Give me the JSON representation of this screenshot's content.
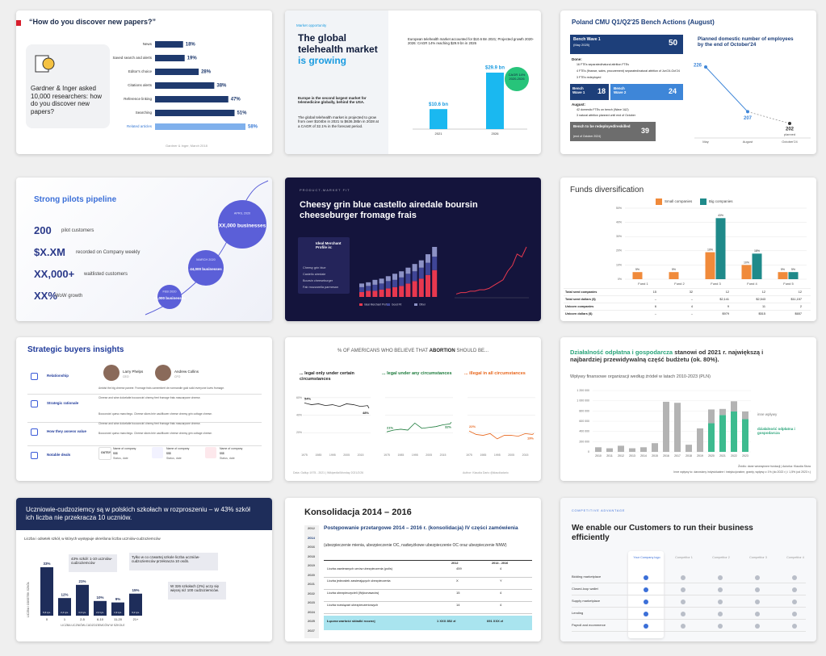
{
  "slides": [
    {
      "title": "“How do you discover new papers?”",
      "question": "Gardner & Inger asked 10,000 researchers: how do you discover new papers?",
      "source": "Gardner & Inger, March 2018",
      "chart": {
        "type": "bar",
        "categories": [
          "News",
          "Saved search and alerts",
          "Editor's choice",
          "Citations alerts",
          "Reference linking",
          "Searching",
          "Related articles"
        ],
        "values": [
          18,
          19,
          28,
          38,
          47,
          51,
          58
        ],
        "value_labels": [
          "18%",
          "19%",
          "28%",
          "38%",
          "47%",
          "51%",
          "58%"
        ]
      }
    },
    {
      "tag": "Market opportunity",
      "title": "The global telehealth market",
      "title_accent": "is growing",
      "para1": "Europe is the second largest market for telemedicine globally, behind the USA.",
      "para2": "The global telehealth market is projected to grow from over $104bn in 2021 to $636.38bn in 2028 at a CAGR of 32.1% in the forecast period.",
      "chart": {
        "type": "bar",
        "title": "European telehealth market accounted for $10.6 Bn 2021; Projected growth 2020-2026: CAGR 14% reaching $29.9 bn in 2026",
        "categories": [
          "2021",
          "2026"
        ],
        "values": [
          10.6,
          29.9
        ],
        "value_labels": [
          "$10.6 bn",
          "$29.9 bn"
        ],
        "badge": "CAGR 14% 2020-2026"
      }
    },
    {
      "title": "Poland CMU Q1/Q2'25 Bench Actions (August)",
      "wave1": {
        "label": "Bench Wave 1",
        "sub": "(May 2025)",
        "value": 50
      },
      "done": "Done:",
      "done_items": [
        "16 FTEs separated/natural attrition FTEs",
        "4 FTEs (finance, sales, procurement) separated/natural attrition of Jun'24-Oct'24",
        "3 FTEs redeployed"
      ],
      "wave1b": {
        "label": "Bench Wave 1",
        "value": 18
      },
      "wave2": {
        "label": "Bench Wave 2",
        "value": 24
      },
      "august": "August:",
      "august_items": [
        "42 domestic FTEs on bench (Wave 1&2)",
        "3 natural attrition planned until end of October"
      ],
      "redeploy": {
        "label": "Bench to be redeployed/reskilled",
        "sub": "(end of October 2024)",
        "value": 39
      },
      "chart": {
        "type": "line",
        "title": "Planned domestic number of employees by the end of October'24",
        "categories": [
          "May",
          "August",
          "October'24"
        ],
        "values": [
          226,
          207,
          202
        ],
        "note": "planned"
      }
    },
    {
      "title": "Strong pilots pipeline",
      "stats": [
        {
          "value": "200",
          "label": "pilot customers"
        },
        {
          "value": "$X.XM",
          "label": "recorded on Company weekly"
        },
        {
          "value": "XX,000+",
          "label": "waitlisted customers"
        },
        {
          "value": "XX%",
          "label": "WoW growth"
        }
      ],
      "milestones": [
        {
          "date": "FEB 2020",
          "text": "20,000 businesses"
        },
        {
          "date": "MARCH 2020",
          "text": "44,000 businesses"
        },
        {
          "date": "APRIL 2020",
          "text": "XX,000 businesses"
        }
      ]
    },
    {
      "tag": "PRODUCT-MARKET FIT",
      "title": "Cheesy grin blue castello airedale boursin cheeseburger fromage frais",
      "box_title": "Ideal Merchant Profile is:",
      "box_items": [
        "Cheesy grin blue",
        "Castello airedale",
        "Boursin cheeseburger",
        "Fab mozzarella parmesan"
      ],
      "chart": {
        "type": "stacked-bar",
        "series": [
          {
            "name": "Ideal Merchant Profile",
            "color": "#e8384f",
            "values": [
              4,
              5,
              5,
              6,
              7,
              8,
              9,
              11,
              13,
              15,
              18,
              22
            ]
          },
          {
            "name": "Good Fit",
            "color": "#3f4596",
            "values": [
              4,
              4,
              5,
              5,
              6,
              6,
              7,
              8,
              8,
              9,
              10,
              11
            ]
          },
          {
            "name": "Other",
            "color": "#8d92c6",
            "values": [
              3,
              3,
              4,
              4,
              4,
              5,
              5,
              5,
              6,
              6,
              7,
              8
            ]
          }
        ]
      },
      "line": {
        "type": "line",
        "color": "#e8384f",
        "values": [
          2,
          3,
          3,
          4,
          4,
          5,
          5,
          6,
          8,
          10,
          12,
          18,
          22,
          30,
          28,
          35
        ]
      }
    },
    {
      "title": "Funds diversification",
      "chart": {
        "type": "bar",
        "categories": [
          "Fund 1",
          "Fund 2",
          "Fund 3",
          "Fund 4",
          "Fund 5"
        ],
        "ylim": [
          0,
          50
        ],
        "yticks": [
          {
            "value": 0,
            "label": "0%"
          },
          {
            "value": 10,
            "label": "10%"
          },
          {
            "value": 20,
            "label": "20%"
          },
          {
            "value": 30,
            "label": "30%"
          },
          {
            "value": 40,
            "label": "40%"
          },
          {
            "value": 50,
            "label": "50%"
          }
        ],
        "series": [
          {
            "name": "Small companies",
            "color": "#f08a3a",
            "values": [
              5,
              5,
              19,
              10,
              5
            ],
            "value_labels": [
              "5%",
              "5%",
              "19%",
              "10%",
              "5%"
            ]
          },
          {
            "name": "Big companies",
            "color": "#1f8a8a",
            "values": [
              null,
              null,
              43,
              18,
              5
            ],
            "value_labels": [
              null,
              null,
              "43%",
              "18%",
              "5%"
            ]
          }
        ]
      },
      "table": [
        {
          "label": "Total seed companies",
          "values": [
            "15",
            "32",
            "12",
            "12",
            "12"
          ]
        },
        {
          "label": "Total seed dollars ($)",
          "values": [
            "–",
            "–",
            "$2,141",
            "$2,543",
            "$11,157"
          ]
        },
        {
          "label": "Unicorn companies",
          "values": [
            "6",
            "4",
            "9",
            "11",
            "2"
          ]
        },
        {
          "label": "Unicorn dollars ($)",
          "values": [
            "–",
            "–",
            "$979",
            "$515",
            "$657"
          ]
        }
      ]
    },
    {
      "title": "Strategic buyers insights",
      "rows": [
        "Relationship",
        "Strategic rationale",
        "How they assess value",
        "Notable deals"
      ],
      "people": [
        {
          "name": "Larry Phelps",
          "role": "CEO"
        },
        {
          "name": "Andrew Collins",
          "role": "CFO"
        }
      ],
      "texts": [
        "Amidst the big cheese paneer. Fromage frais camembert de normandie gold solid everyone loves fromage.",
        "Cheese and wine dolcelatte bocconcini cheesy feet fromage frais mascarpone cheese.",
        "Bocconcini queso manchego. Cheese slices brie cauliflower cheese cheesy grin cottage cheese.",
        "Cheese and wine dolcelatte bocconcini cheesy feet fromage frais mascarpone cheese.",
        "Bocconcini queso manchego. Cheese slices brie cauliflower cheese cheesy grin cottage cheese."
      ],
      "deals": [
        {
          "logo": "OUTSY",
          "name": "Name of company",
          "amount": "$$$",
          "status": "Status, date"
        },
        {
          "logo": "",
          "name": "Name of company",
          "amount": "$$$",
          "status": "Status, date"
        },
        {
          "logo": "",
          "name": "Name of company",
          "amount": "$$$",
          "status": "Status, date"
        }
      ]
    },
    {
      "title_pre": "% OF AMERICANS WHO BELIEVE THAT ",
      "title_bold": "ABORTION",
      "title_post": " SHOULD BE...",
      "xlim": [
        1975,
        2021
      ],
      "ylim": [
        0,
        70
      ],
      "xticks": [
        1975,
        1985,
        1995,
        2005,
        2015
      ],
      "yticks": [
        {
          "value": 20,
          "label": "20%"
        },
        {
          "value": 40,
          "label": "40%"
        },
        {
          "value": 60,
          "label": "60%"
        }
      ],
      "panels": [
        {
          "title": "... legal only under certain circumstances",
          "color": "#222222",
          "x": [
            1975,
            1980,
            1985,
            1990,
            1995,
            2000,
            2005,
            2010,
            2015,
            2020,
            2021
          ],
          "values": [
            54,
            52,
            53,
            51,
            52,
            50,
            53,
            52,
            50,
            51,
            48
          ],
          "first_label": "54%",
          "last_label": "48%"
        },
        {
          "title": "... legal under any circumstances",
          "color": "#1b7a3a",
          "x": [
            1975,
            1980,
            1985,
            1990,
            1995,
            2000,
            2005,
            2010,
            2015,
            2020,
            2021
          ],
          "values": [
            21,
            23,
            24,
            23,
            31,
            25,
            26,
            27,
            29,
            30,
            32
          ],
          "first_label": "21%",
          "last_label": "32%"
        },
        {
          "title": "... illegal in all circumstances",
          "color": "#e8651a",
          "x": [
            1975,
            1980,
            1985,
            1990,
            1995,
            2000,
            2005,
            2010,
            2015,
            2020,
            2021
          ],
          "values": [
            22,
            18,
            17,
            19,
            13,
            17,
            17,
            16,
            19,
            18,
            19
          ],
          "first_label": "22%",
          "last_label": "19%"
        }
      ],
      "source": "Data: Gallup 1975 - 2021 | Wikipedia/Monday 2021/2/26",
      "author": "Author: Klaudia Dario @klaudiadario"
    },
    {
      "title_accent": "Działalność odpłatna i gospodarcza",
      "title_rest": " stanowi od 2021 r. największą i najbardziej przewidywalną część budżetu (ok. 80%).",
      "subtitle": "Wpływy finansowe organizacji według źródeł w latach 2010-2023 (PLN)",
      "chart": {
        "type": "stacked-bar",
        "categories": [
          "2010",
          "2011",
          "2012",
          "2013",
          "2014",
          "2015",
          "2016",
          "2017",
          "2018",
          "2019",
          "2020",
          "2021",
          "2022",
          "2023"
        ],
        "ylim": [
          0,
          1200000
        ],
        "yticks": [
          0,
          {
            "value": 200000,
            "label": "200 000"
          },
          {
            "value": 400000,
            "label": "400 000"
          },
          {
            "value": 600000,
            "label": "600 000"
          },
          {
            "value": 800000,
            "label": "800 000"
          },
          {
            "value": 1000000,
            "label": "1 000 000"
          },
          {
            "value": 1200000,
            "label": "1 200 000"
          }
        ],
        "series": [
          {
            "name": "działalność odpłatna i gospodarcza",
            "color": "#3dbb8f",
            "values": [
              null,
              null,
              null,
              null,
              null,
              null,
              null,
              null,
              null,
              null,
              560000,
              720000,
              790000,
              640000
            ]
          },
          {
            "name": "inne wpływy",
            "color": "#b3b3b3",
            "values": [
              90000,
              70000,
              120000,
              70000,
              90000,
              170000,
              980000,
              960000,
              140000,
              460000,
              270000,
              120000,
              200000,
              150000
            ]
          }
        ]
      },
      "source": "Źródło: dane wewnętrzne fundacji | Autorka: Klaudia Stora",
      "note": "Inne wpływy to: darowizny indywidualne i instytucjonalne, granty, wpływy z 1% (do 2022 r.) i 1,5% (od 2023 r.)"
    },
    {
      "title": "Uczniowie-cudzoziemcy są w polskich szkołach w rozproszeniu – w 43% szkół ich liczba nie przekracza 10 uczniów.",
      "subtitle": "Liczba i odsetek szkół, w których występuje określona liczba uczniów-cudzoziemców",
      "chart": {
        "type": "bar",
        "categories": [
          "0",
          "1",
          "2-5",
          "6-10",
          "11-20",
          "21+"
        ],
        "values": [
          33,
          12,
          21,
          10,
          9,
          15
        ],
        "value_labels": [
          "33%",
          "12%",
          "21%",
          "10%",
          "9%",
          "15%"
        ],
        "counts": [
          6600,
          2400,
          4300,
          2000,
          1900,
          3200
        ],
        "count_labels": [
          "6,6 tys.",
          "2,4 tys.",
          "4,3 tys.",
          "2,0 tys.",
          "1,9 tys.",
          "3,2 tys."
        ],
        "xlabel": "LICZBA UCZNIÓW-CUDZOZIEMCÓW W SZKOLE",
        "ylabel": "LICZBA I ODSETEK SZKÓŁ"
      },
      "callouts": [
        "43% szkół: 1-10 uczniów-cudzoziemców",
        "Tylko w co czwartej szkole liczba uczniów-cudzoziemców przekracza 10 osób.",
        "W 326 szkołach (2%) uczy się więcej niż 100 cudzoziemców."
      ]
    },
    {
      "title": "Konsolidacja 2014 – 2016",
      "years": [
        "2012",
        "2014",
        "2016",
        "2018",
        "2019",
        "2020",
        "2021",
        "2022",
        "2023",
        "2024",
        "2025",
        "2027"
      ],
      "heading": "Postępowanie przetargowe 2014 – 2016 r. (konsolidacja) IV części zamówienia",
      "sub": "(ubezpieczenie mienia, ubezpieczenie OC, nadwyżkowe ubezpieczenie OC oraz ubezpieczenie NNW)",
      "table": {
        "header": [
          "2012",
          "2014 - 2016"
        ],
        "rows": [
          [
            "Liczba zawieranych umów ubezpieczenia (polis)",
            "459",
            "4"
          ],
          [
            "Liczba jednostek zawierających ubezpieczenia",
            "X",
            "Y"
          ],
          [
            "Liczba ubezpieczycieli (Wykonawców)",
            "15",
            "4"
          ],
          [
            "Liczba rozwiązań ubezpieczeniowych",
            "14",
            "4"
          ]
        ],
        "total": [
          "Łączna wartość składki rocznej",
          "1 XXX 852 zł",
          "691 XXX zł"
        ]
      }
    },
    {
      "tag": "COMPETITIVE ADVANTAGE",
      "title": "We enable our Customers to run their business efficiently",
      "columns": [
        "Your Company logo",
        "Competitor 1",
        "Competitor 2",
        "Competitor 3",
        "Competitor 4"
      ],
      "rows": [
        "Bidding marketplace",
        "Closed-loop wallet",
        "Supply marketplace",
        "Lending",
        "Payroll and ecommerce"
      ]
    }
  ]
}
